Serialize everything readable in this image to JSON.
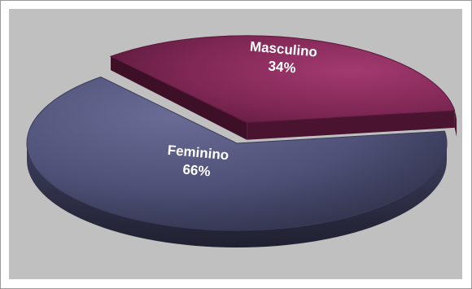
{
  "chart_data": {
    "type": "pie",
    "style": "3d-exploded",
    "categories": [
      "Masculino",
      "Feminino"
    ],
    "values": [
      34,
      66
    ],
    "labels": [
      {
        "category": "Masculino",
        "percent": "34%"
      },
      {
        "category": "Feminino",
        "percent": "66%"
      }
    ],
    "colors": {
      "Masculino": "#8a2c5c",
      "Feminino": "#53557a",
      "background": "#c0c0c0"
    },
    "title": "",
    "legend": "none"
  }
}
